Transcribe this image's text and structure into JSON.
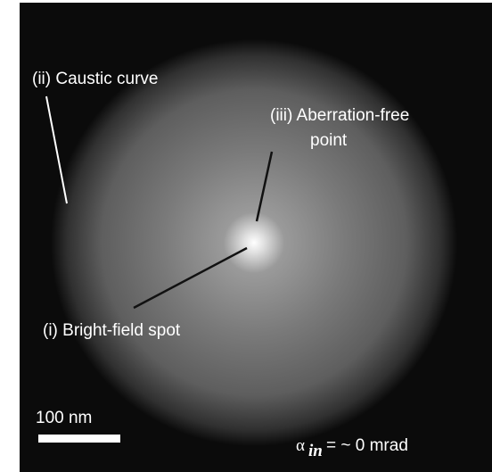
{
  "labels": {
    "caustic": "(ii) Caustic curve",
    "aberration_line1": "(iii) Aberration-free",
    "aberration_line2": "point",
    "bright_field": "(i) Bright-field spot"
  },
  "scale_bar": {
    "label": "100 nm"
  },
  "parameter": {
    "symbol": "α",
    "subscript": "in",
    "text": "= ~ 0 mrad"
  }
}
